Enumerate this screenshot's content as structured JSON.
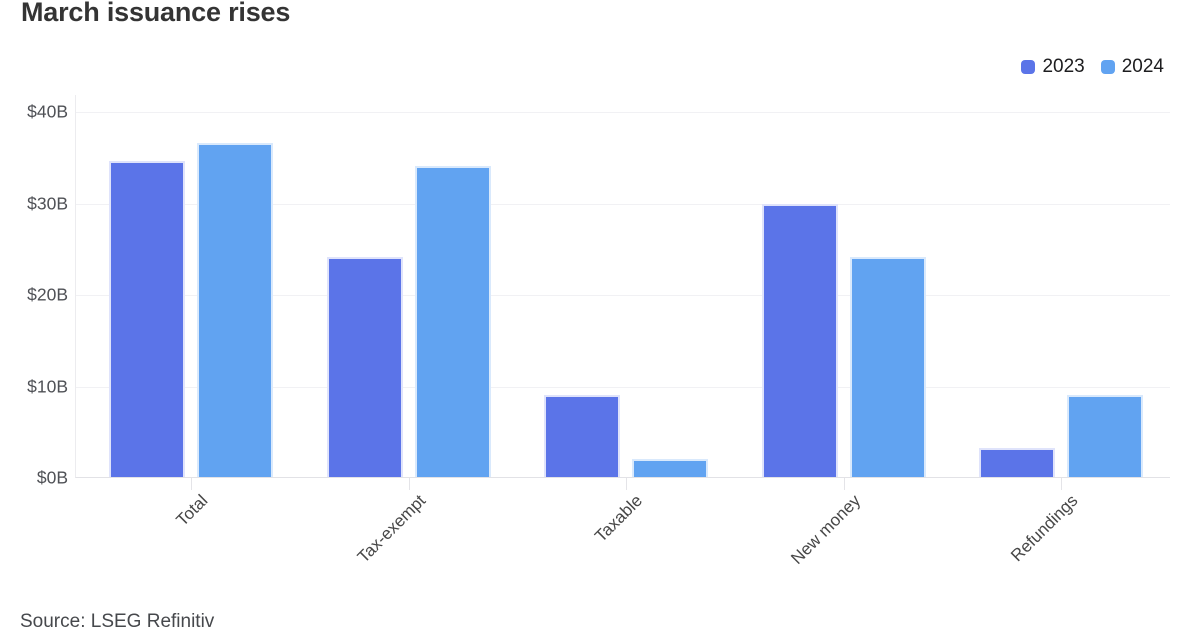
{
  "title": "March issuance rises",
  "source": "Source: LSEG Refinitiv",
  "legend": {
    "position": "top-right",
    "items": [
      {
        "label": "2023",
        "color": "#5B74E8"
      },
      {
        "label": "2024",
        "color": "#61A3F1"
      }
    ]
  },
  "chart_data": {
    "type": "bar",
    "title": "March issuance rises",
    "categories": [
      "Total",
      "Tax-exempt",
      "Taxable",
      "New money",
      "Refundings"
    ],
    "series": [
      {
        "name": "2023",
        "color": "#5B74E8",
        "border_color": "#dfe3fb",
        "values": [
          34.5,
          24,
          9,
          29.8,
          3.2
        ]
      },
      {
        "name": "2024",
        "color": "#61A3F1",
        "border_color": "#d9e9fc",
        "values": [
          36.5,
          34,
          2,
          24,
          9
        ]
      }
    ],
    "xlabel": "",
    "ylabel": "",
    "ylim": [
      0,
      40
    ],
    "y_ticks": [
      {
        "label": "$0B",
        "value": 0
      },
      {
        "label": "$10B",
        "value": 10
      },
      {
        "label": "$20B",
        "value": 20
      },
      {
        "label": "$30B",
        "value": 30
      },
      {
        "label": "$40B",
        "value": 40
      }
    ],
    "grid": true,
    "legend_position": "top-right",
    "source": "Source: LSEG Refinitiv"
  }
}
